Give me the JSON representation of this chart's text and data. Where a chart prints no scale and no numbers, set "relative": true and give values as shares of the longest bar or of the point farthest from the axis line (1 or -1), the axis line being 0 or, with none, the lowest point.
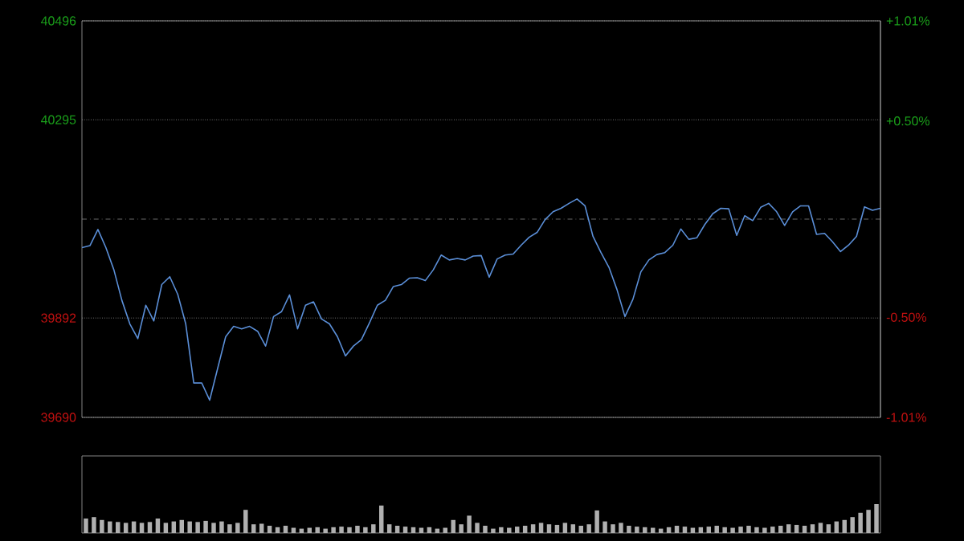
{
  "chart_data": [
    {
      "type": "line",
      "color": "#5b8fd8",
      "categories": [
        null,
        null,
        null,
        null,
        null,
        null,
        null,
        null,
        null,
        null,
        null,
        null,
        null,
        null,
        null,
        null,
        null,
        null,
        null,
        null,
        null,
        null,
        null,
        null,
        null,
        null,
        null,
        null,
        null,
        null,
        null,
        null,
        null,
        null,
        null,
        null,
        null,
        null,
        null,
        null,
        null,
        null,
        null,
        null,
        null,
        null,
        null,
        null,
        null,
        null,
        null,
        null,
        null,
        null,
        null,
        null,
        null,
        null,
        null,
        null,
        null,
        null,
        null,
        null,
        null,
        null,
        null,
        null,
        null,
        null,
        null,
        null,
        null,
        null,
        null,
        null,
        null,
        null,
        null,
        null,
        null,
        null,
        null,
        null,
        null,
        null,
        null,
        null,
        null,
        null,
        null,
        null,
        null,
        null,
        null,
        null,
        null,
        null,
        null,
        null,
        null
      ],
      "values": [
        40035,
        40039,
        40072,
        40035,
        39990,
        39928,
        39880,
        39850,
        39918,
        39886,
        39960,
        39976,
        39940,
        39880,
        39760,
        39760,
        39725,
        39790,
        39854,
        39875,
        39870,
        39875,
        39865,
        39835,
        39895,
        39905,
        39939,
        39870,
        39918,
        39925,
        39890,
        39880,
        39854,
        39815,
        39835,
        39848,
        39882,
        39918,
        39928,
        39956,
        39960,
        39973,
        39974,
        39968,
        39990,
        40020,
        40010,
        40013,
        40010,
        40018,
        40019,
        39975,
        40012,
        40020,
        40022,
        40040,
        40056,
        40066,
        40092,
        40108,
        40115,
        40125,
        40134,
        40120,
        40058,
        40025,
        39995,
        39950,
        39895,
        39930,
        39986,
        40010,
        40021,
        40025,
        40040,
        40073,
        40052,
        40055,
        40082,
        40104,
        40115,
        40114,
        40060,
        40100,
        40090,
        40117,
        40125,
        40108,
        40080,
        40108,
        40120,
        40120,
        40062,
        40064,
        40047,
        40027,
        40040,
        40058,
        40118,
        40111,
        40115
      ],
      "ylim": [
        39690,
        40496
      ],
      "yticks": [
        39690,
        39892,
        40295,
        40496
      ],
      "y2lim": [
        -1.01,
        1.01
      ],
      "y2ticks": [
        {
          "value": -1.01,
          "label": "-1.01%"
        },
        {
          "value": -0.5,
          "label": "-0.50%"
        },
        {
          "value": 0.5,
          "label": "+0.50%"
        },
        {
          "value": 1.01,
          "label": "+1.01%"
        }
      ],
      "ref_lines": [
        {
          "axis": "y",
          "value": 40093,
          "color": "#888888",
          "line_style": "dashdot"
        }
      ],
      "grid": "y"
    },
    {
      "type": "bar",
      "relative": true,
      "color": "#b0b0b0",
      "categories": [
        null,
        null,
        null,
        null,
        null,
        null,
        null,
        null,
        null,
        null,
        null,
        null,
        null,
        null,
        null,
        null,
        null,
        null,
        null,
        null,
        null,
        null,
        null,
        null,
        null,
        null,
        null,
        null,
        null,
        null,
        null,
        null,
        null,
        null,
        null,
        null,
        null,
        null,
        null,
        null,
        null,
        null,
        null,
        null,
        null,
        null,
        null,
        null,
        null,
        null,
        null,
        null,
        null,
        null,
        null,
        null,
        null,
        null,
        null,
        null,
        null,
        null,
        null,
        null,
        null,
        null,
        null,
        null,
        null,
        null,
        null,
        null,
        null,
        null,
        null,
        null,
        null,
        null,
        null,
        null,
        null,
        null,
        null,
        null,
        null,
        null,
        null,
        null,
        null,
        null,
        null,
        null,
        null,
        null,
        null,
        null,
        null,
        null,
        null,
        null
      ],
      "values": [
        0.5,
        0.55,
        0.45,
        0.4,
        0.38,
        0.35,
        0.4,
        0.35,
        0.38,
        0.5,
        0.35,
        0.4,
        0.45,
        0.4,
        0.38,
        0.42,
        0.35,
        0.4,
        0.3,
        0.35,
        0.8,
        0.3,
        0.32,
        0.25,
        0.2,
        0.25,
        0.18,
        0.15,
        0.18,
        0.2,
        0.15,
        0.2,
        0.22,
        0.2,
        0.25,
        0.2,
        0.3,
        0.95,
        0.3,
        0.25,
        0.22,
        0.2,
        0.18,
        0.2,
        0.15,
        0.18,
        0.45,
        0.3,
        0.6,
        0.35,
        0.25,
        0.15,
        0.2,
        0.18,
        0.22,
        0.25,
        0.3,
        0.35,
        0.3,
        0.28,
        0.35,
        0.3,
        0.25,
        0.3,
        0.78,
        0.4,
        0.3,
        0.35,
        0.25,
        0.22,
        0.2,
        0.18,
        0.15,
        0.2,
        0.25,
        0.22,
        0.18,
        0.2,
        0.22,
        0.25,
        0.2,
        0.18,
        0.22,
        0.25,
        0.2,
        0.18,
        0.22,
        0.25,
        0.3,
        0.28,
        0.25,
        0.3,
        0.35,
        0.3,
        0.4,
        0.45,
        0.55,
        0.7,
        0.8,
        1
      ]
    }
  ]
}
